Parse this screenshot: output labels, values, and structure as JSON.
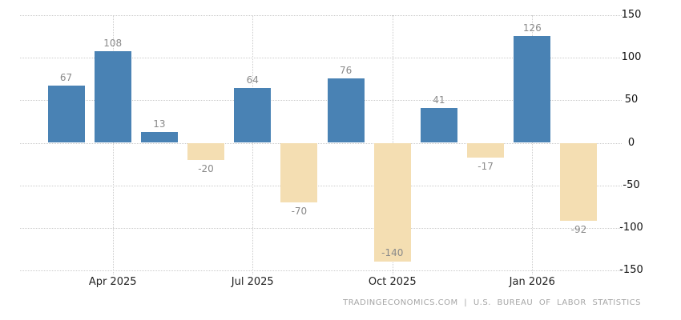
{
  "chart_data": {
    "type": "bar",
    "values": [
      67,
      108,
      13,
      -20,
      64,
      -70,
      76,
      -140,
      41,
      -17,
      126,
      -92
    ],
    "x_tick_labels": [
      {
        "label": "Apr 2025",
        "bar_index": 1
      },
      {
        "label": "Jul 2025",
        "bar_index": 4
      },
      {
        "label": "Oct 2025",
        "bar_index": 7
      },
      {
        "label": "Jan 2026",
        "bar_index": 10
      }
    ],
    "y_ticks": [
      150,
      100,
      50,
      0,
      -50,
      -100,
      -150
    ],
    "ylim": [
      -150,
      150
    ],
    "grid": "dotted",
    "legend": "none",
    "colors": {
      "positive": "#4982B4",
      "negative": "#F4DEB2",
      "value_label": "#8A8A8A",
      "axis_text": "#222222",
      "gridline": "#CCCCCC"
    }
  },
  "footer": {
    "attribution": "TRADINGECONOMICS.COM | U.S. BUREAU OF LABOR STATISTICS"
  }
}
